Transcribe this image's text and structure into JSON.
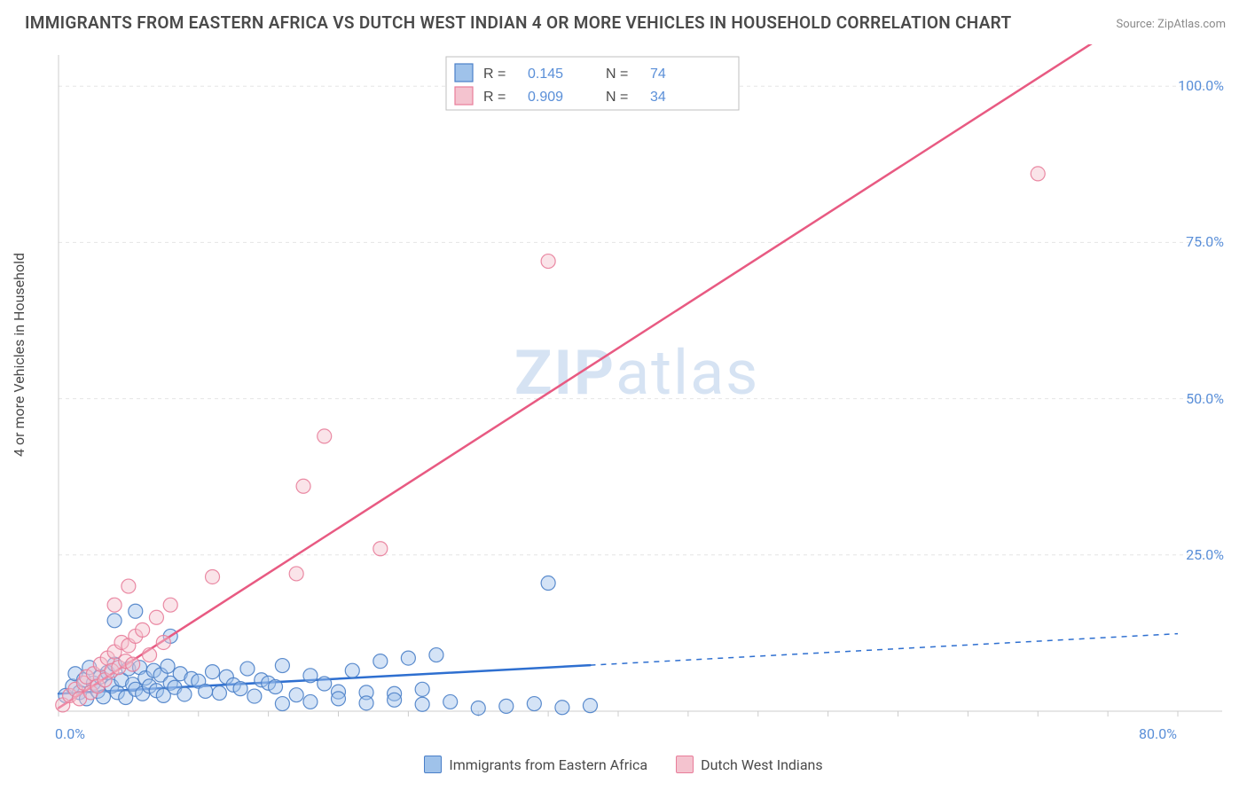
{
  "title": "IMMIGRANTS FROM EASTERN AFRICA VS DUTCH WEST INDIAN 4 OR MORE VEHICLES IN HOUSEHOLD CORRELATION CHART",
  "source": "Source: ZipAtlas.com",
  "watermark": {
    "prefix": "ZIP",
    "suffix": "atlas"
  },
  "y_axis_label": "4 or more Vehicles in Household",
  "chart": {
    "type": "scatter-regression",
    "background_color": "#ffffff",
    "grid_color": "#e5e5e5",
    "axis_color": "#cccccc",
    "xlim": [
      0,
      80
    ],
    "ylim": [
      0,
      105
    ],
    "x_ticks": [
      0,
      80
    ],
    "x_tick_labels": [
      "0.0%",
      "80.0%"
    ],
    "y_ticks": [
      25,
      50,
      75,
      100
    ],
    "y_tick_labels": [
      "25.0%",
      "50.0%",
      "75.0%",
      "100.0%"
    ],
    "tick_label_color": "#5a8fd8",
    "tick_label_fontsize": 16,
    "y_label_fontsize": 16,
    "y_label_color": "#4a4a4a",
    "marker_radius": 8,
    "marker_opacity": 0.45,
    "marker_stroke_opacity": 0.9,
    "line_width": 2.5
  },
  "series": [
    {
      "name": "Immigrants from Eastern Africa",
      "color_fill": "#9fc2ea",
      "color_stroke": "#4a7fc8",
      "line_color": "#2e6fd0",
      "r": 0.145,
      "n": 74,
      "regression": {
        "slope": 0.12,
        "intercept": 2.8,
        "data_x_max": 38,
        "extend_dashed_to": 80
      },
      "points": [
        [
          0.5,
          2.5
        ],
        [
          1,
          4
        ],
        [
          1.2,
          6
        ],
        [
          1.5,
          3
        ],
        [
          1.8,
          5
        ],
        [
          2,
          2
        ],
        [
          2.2,
          7
        ],
        [
          2.5,
          4.5
        ],
        [
          2.8,
          3.2
        ],
        [
          3,
          5.5
        ],
        [
          3.2,
          2.3
        ],
        [
          3.5,
          6.2
        ],
        [
          3.8,
          4
        ],
        [
          4,
          7.5
        ],
        [
          4.2,
          3
        ],
        [
          4.5,
          5
        ],
        [
          4.8,
          2.2
        ],
        [
          5,
          6.8
        ],
        [
          5.3,
          4.3
        ],
        [
          5.5,
          3.5
        ],
        [
          5.8,
          7
        ],
        [
          6,
          2.8
        ],
        [
          6.2,
          5.3
        ],
        [
          6.5,
          4
        ],
        [
          6.8,
          6.5
        ],
        [
          7,
          3.3
        ],
        [
          7.3,
          5.8
        ],
        [
          7.5,
          2.5
        ],
        [
          7.8,
          7.2
        ],
        [
          8,
          4.5
        ],
        [
          8.3,
          3.8
        ],
        [
          8.7,
          6
        ],
        [
          9,
          2.7
        ],
        [
          9.5,
          5.2
        ],
        [
          10,
          4.8
        ],
        [
          10.5,
          3.2
        ],
        [
          11,
          6.3
        ],
        [
          11.5,
          2.9
        ],
        [
          12,
          5.5
        ],
        [
          12.5,
          4.2
        ],
        [
          13,
          3.6
        ],
        [
          13.5,
          6.8
        ],
        [
          14,
          2.4
        ],
        [
          14.5,
          5
        ],
        [
          15,
          4.5
        ],
        [
          15.5,
          3.9
        ],
        [
          16,
          7.3
        ],
        [
          17,
          2.6
        ],
        [
          18,
          5.7
        ],
        [
          19,
          4.4
        ],
        [
          20,
          3.1
        ],
        [
          21,
          6.5
        ],
        [
          22,
          3
        ],
        [
          23,
          8
        ],
        [
          24,
          2.8
        ],
        [
          25,
          8.5
        ],
        [
          26,
          3.5
        ],
        [
          27,
          9
        ],
        [
          4,
          14.5
        ],
        [
          5.5,
          16
        ],
        [
          8,
          12
        ],
        [
          35,
          20.5
        ],
        [
          28,
          1.5
        ],
        [
          30,
          0.5
        ],
        [
          32,
          0.8
        ],
        [
          34,
          1.2
        ],
        [
          36,
          0.6
        ],
        [
          38,
          0.9
        ],
        [
          22,
          1.3
        ],
        [
          24,
          1.8
        ],
        [
          26,
          1.1
        ],
        [
          18,
          1.5
        ],
        [
          20,
          2
        ],
        [
          16,
          1.2
        ]
      ]
    },
    {
      "name": "Dutch West Indians",
      "color_fill": "#f4c3cf",
      "color_stroke": "#e87d9a",
      "line_color": "#e85a82",
      "r": 0.909,
      "n": 34,
      "regression": {
        "slope": 1.44,
        "intercept": 0.5,
        "data_x_max": 75,
        "extend_dashed_to": 80
      },
      "points": [
        [
          0.3,
          1
        ],
        [
          0.8,
          2.5
        ],
        [
          1.2,
          3.5
        ],
        [
          1.5,
          2
        ],
        [
          1.8,
          4.5
        ],
        [
          2,
          5.5
        ],
        [
          2.3,
          3
        ],
        [
          2.5,
          6
        ],
        [
          2.8,
          4
        ],
        [
          3,
          7.5
        ],
        [
          3.3,
          5
        ],
        [
          3.5,
          8.5
        ],
        [
          3.8,
          6.5
        ],
        [
          4,
          9.5
        ],
        [
          4.3,
          7
        ],
        [
          4.5,
          11
        ],
        [
          4.8,
          8
        ],
        [
          5,
          10.5
        ],
        [
          5.3,
          7.5
        ],
        [
          5.5,
          12
        ],
        [
          6,
          13
        ],
        [
          6.5,
          9
        ],
        [
          7,
          15
        ],
        [
          7.5,
          11
        ],
        [
          8,
          17
        ],
        [
          4,
          17
        ],
        [
          5,
          20
        ],
        [
          11,
          21.5
        ],
        [
          17,
          22
        ],
        [
          17.5,
          36
        ],
        [
          23,
          26
        ],
        [
          19,
          44
        ],
        [
          35,
          72
        ],
        [
          70,
          86
        ]
      ]
    }
  ],
  "top_legend": {
    "border_color": "#bfbfbf",
    "bg_color": "#ffffff",
    "label_R": "R  =",
    "label_N": "N  =",
    "value_color": "#5a8fd8",
    "label_color": "#4a4a4a",
    "fontsize": 16
  },
  "bottom_legend": {
    "fontsize": 16,
    "label_color": "#4a4a4a"
  }
}
